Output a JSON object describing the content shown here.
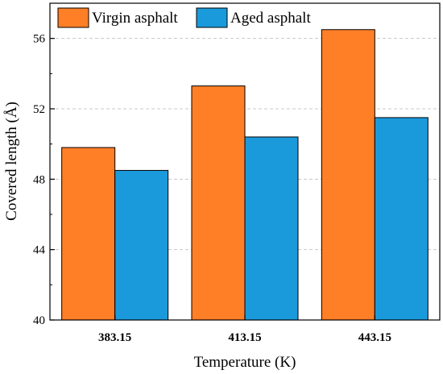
{
  "chart_data": {
    "type": "bar",
    "title": "",
    "xlabel": "Temperature (K)",
    "ylabel": "Covered length (Å)",
    "categories": [
      "383.15",
      "413.15",
      "443.15"
    ],
    "series": [
      {
        "name": "Virgin asphalt",
        "color": "#FF7F27",
        "values": [
          49.8,
          53.3,
          56.5
        ]
      },
      {
        "name": "Aged asphalt",
        "color": "#1A9ADB",
        "values": [
          48.5,
          50.4,
          51.5
        ]
      }
    ],
    "ylim": [
      40,
      58
    ],
    "yticks": [
      40,
      44,
      48,
      52,
      56
    ],
    "grid": true,
    "legend": "top-left"
  }
}
